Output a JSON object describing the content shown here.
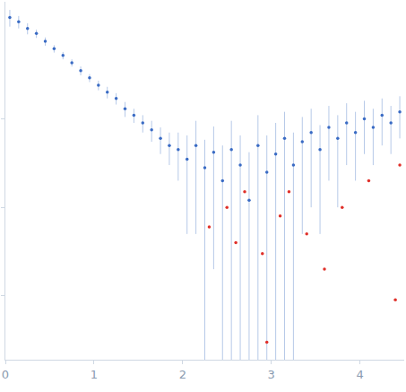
{
  "chart_data": {
    "type": "scatter",
    "log": "y",
    "grid": false,
    "tick_labels": "x",
    "xlim": [
      0,
      4.5
    ],
    "xticks": [
      0,
      1,
      2,
      3,
      4
    ],
    "ylim": [
      0.00019,
      2.1
    ],
    "yticks": [
      0.001,
      0.01,
      0.1
    ],
    "series": [
      {
        "color": "#3a6bc4",
        "marker": "circle",
        "x": [
          0.05,
          0.15,
          0.25,
          0.35,
          0.45,
          0.55,
          0.65,
          0.75,
          0.85,
          0.95,
          1.05,
          1.15,
          1.25,
          1.35,
          1.45,
          1.55,
          1.65,
          1.75,
          1.85,
          1.95,
          2.05,
          2.15,
          2.25,
          2.35,
          2.45,
          2.55,
          2.65,
          2.75,
          2.85,
          2.95,
          3.05,
          3.15,
          3.25,
          3.35,
          3.45,
          3.55,
          3.65,
          3.75,
          3.85,
          3.95,
          4.05,
          4.15,
          4.25,
          4.35,
          4.45
        ],
        "values": [
          1.4,
          1.25,
          1.05,
          0.92,
          0.75,
          0.62,
          0.52,
          0.43,
          0.35,
          0.29,
          0.24,
          0.2,
          0.17,
          0.13,
          0.11,
          0.09,
          0.075,
          0.06,
          0.05,
          0.045,
          0.035,
          0.05,
          0.028,
          0.042,
          0.02,
          0.045,
          0.03,
          0.012,
          0.05,
          0.025,
          0.04,
          0.06,
          0.03,
          0.055,
          0.07,
          0.045,
          0.08,
          0.06,
          0.09,
          0.07,
          0.1,
          0.08,
          0.11,
          0.09,
          0.12
        ],
        "error": [
          0.3,
          0.2,
          0.15,
          0.1,
          0.08,
          0.06,
          0.05,
          0.04,
          0.04,
          0.03,
          0.03,
          0.03,
          0.025,
          0.025,
          0.02,
          0.02,
          0.02,
          0.02,
          0.02,
          0.025,
          0.03,
          0.045,
          0.03,
          0.04,
          0.03,
          0.05,
          0.035,
          0.03,
          0.06,
          0.04,
          0.05,
          0.06,
          0.04,
          0.05,
          0.06,
          0.04,
          0.06,
          0.05,
          0.06,
          0.05,
          0.06,
          0.05,
          0.06,
          0.05,
          0.06
        ]
      },
      {
        "color": "#e0302a",
        "marker": "circle",
        "x": [
          2.3,
          2.5,
          2.6,
          2.7,
          2.9,
          2.95,
          3.1,
          3.2,
          3.4,
          3.6,
          3.8,
          4.1,
          4.4,
          4.45
        ],
        "values": [
          0.006,
          0.01,
          0.004,
          0.015,
          0.003,
          0.0003,
          0.008,
          0.015,
          0.005,
          0.002,
          0.01,
          0.02,
          0.0009,
          0.03
        ]
      }
    ]
  }
}
